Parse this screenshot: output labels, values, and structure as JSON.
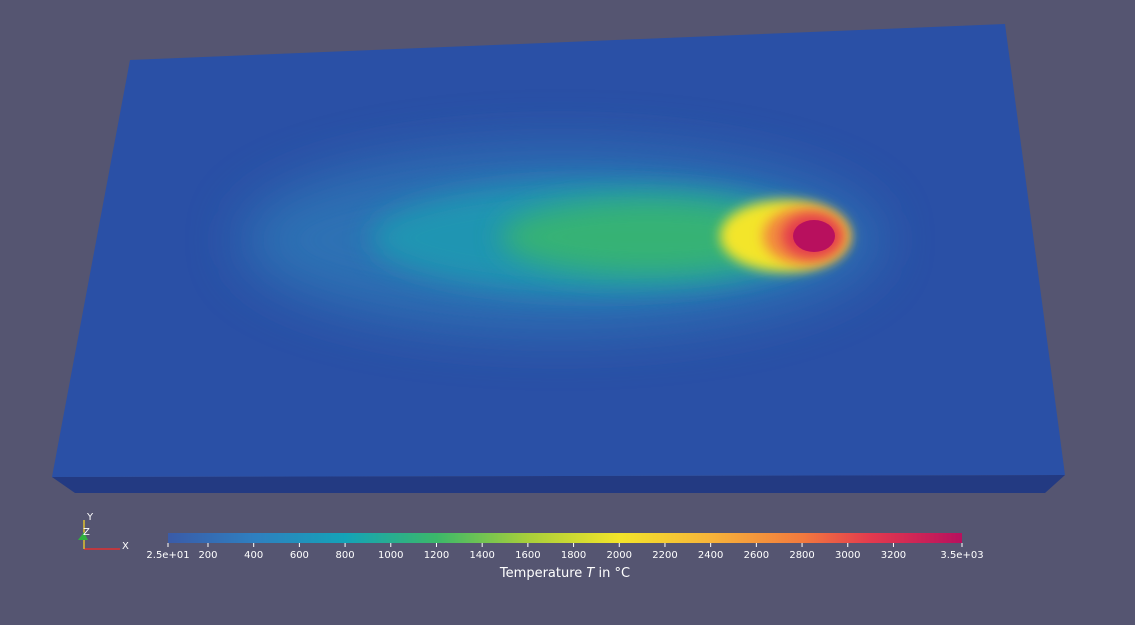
{
  "axes_triad": {
    "x": "X",
    "y": "Y",
    "z": "Z"
  },
  "colorbar": {
    "title": {
      "before": "Temperature ",
      "variable": "T",
      "after": " in °C"
    },
    "range": [
      25,
      3500
    ],
    "ticks": [
      {
        "value": 25,
        "label": "2.5e+01"
      },
      200,
      400,
      600,
      800,
      1000,
      1200,
      1400,
      1600,
      1800,
      2000,
      2200,
      2400,
      2600,
      2800,
      3000,
      3200,
      {
        "value": 3500,
        "label": "3.5e+03"
      }
    ],
    "colormap": [
      {
        "value": 25,
        "color": "#3a5ba8"
      },
      {
        "value": 400,
        "color": "#2f7fc0"
      },
      {
        "value": 800,
        "color": "#14a3b8"
      },
      {
        "value": 1200,
        "color": "#3bb86a"
      },
      {
        "value": 1600,
        "color": "#a8cf3a"
      },
      {
        "value": 2000,
        "color": "#f3e52a"
      },
      {
        "value": 2400,
        "color": "#f7b43a"
      },
      {
        "value": 2800,
        "color": "#f27a3e"
      },
      {
        "value": 3100,
        "color": "#e33a4e"
      },
      {
        "value": 3500,
        "color": "#b8105e"
      }
    ]
  }
}
